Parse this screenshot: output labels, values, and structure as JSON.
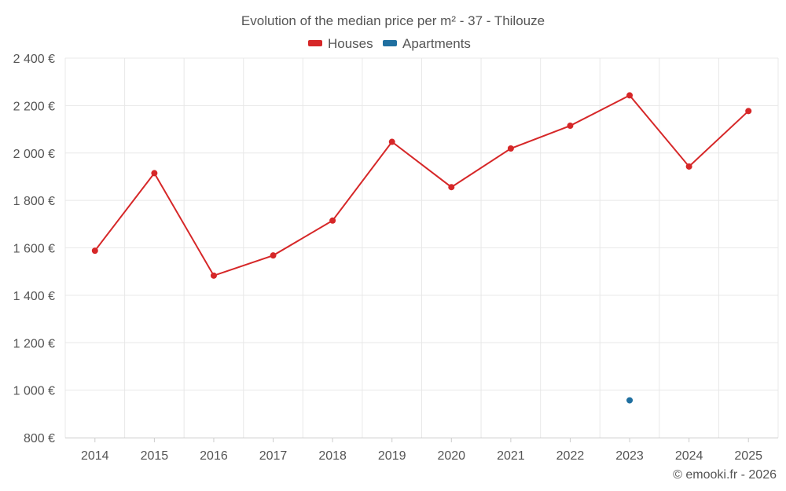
{
  "chart_data": {
    "type": "line",
    "title": "Evolution of the median price per m² - 37 - Thilouze",
    "categories": [
      "2014",
      "2015",
      "2016",
      "2017",
      "2018",
      "2019",
      "2020",
      "2021",
      "2022",
      "2023",
      "2024",
      "2025"
    ],
    "series": [
      {
        "name": "Houses",
        "color": "#d62728",
        "values": [
          1588,
          1915,
          1483,
          1568,
          1715,
          2047,
          1856,
          2019,
          2115,
          2243,
          1943,
          2177
        ]
      },
      {
        "name": "Apartments",
        "color": "#1f6fa0",
        "values": [
          null,
          null,
          null,
          null,
          null,
          null,
          null,
          null,
          null,
          957,
          null,
          null
        ]
      }
    ],
    "ylim": [
      800,
      2400
    ],
    "yticks": [
      800,
      1000,
      1200,
      1400,
      1600,
      1800,
      2000,
      2200,
      2400
    ],
    "ytick_labels": [
      "800 €",
      "1 000 €",
      "1 200 €",
      "1 400 €",
      "1 600 €",
      "1 800 €",
      "2 000 €",
      "2 200 €",
      "2 400 €"
    ],
    "xlabel": "",
    "ylabel": "",
    "grid": true,
    "legend_position": "top-center"
  },
  "credit": "© emooki.fr - 2026"
}
